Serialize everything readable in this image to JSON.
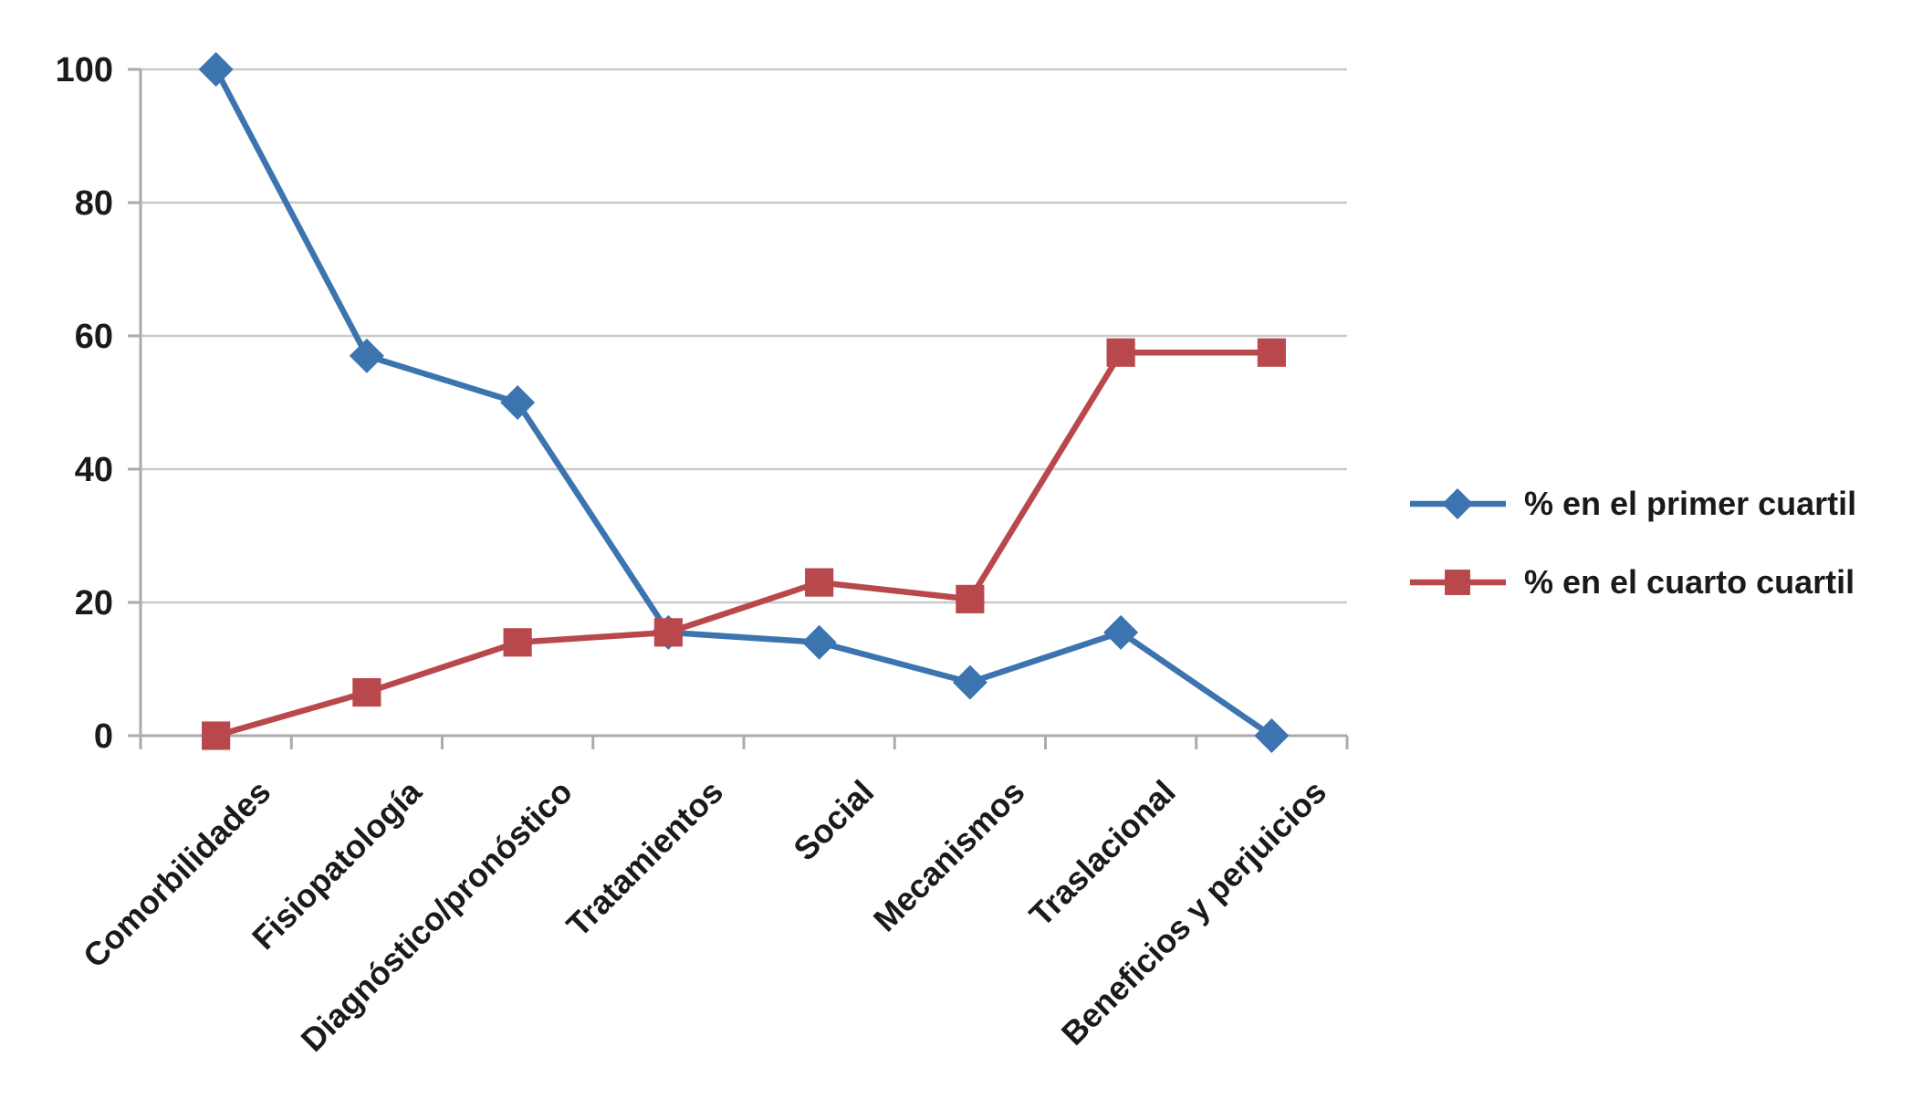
{
  "chart_data": {
    "type": "line",
    "categories": [
      "Comorbilidades",
      "Fisiopatología",
      "Diagnóstico/pronóstico",
      "Tratamientos",
      "Social",
      "Mecanismos",
      "Traslacional",
      "Beneficios y perjuicios"
    ],
    "series": [
      {
        "name": "% en el primer cuartil",
        "marker": "diamond",
        "color": "#3C74B0",
        "values": [
          100,
          57,
          50,
          15.5,
          14,
          8,
          15.5,
          0
        ]
      },
      {
        "name": "% en el cuarto cuartil",
        "marker": "square",
        "color": "#B8484C",
        "values": [
          0,
          6.5,
          14,
          15.5,
          23,
          20.5,
          57.5,
          57.5
        ]
      }
    ],
    "title": "",
    "xlabel": "",
    "ylabel": "",
    "ylim": [
      0,
      100
    ],
    "yticks": [
      0,
      20,
      40,
      60,
      80,
      100
    ],
    "grid": true,
    "legend_position": "right"
  },
  "colors": {
    "background": "#FFFFFF",
    "grid": "#C9C9C9",
    "axis": "#ABABAB",
    "text": "#1A1A1A"
  }
}
